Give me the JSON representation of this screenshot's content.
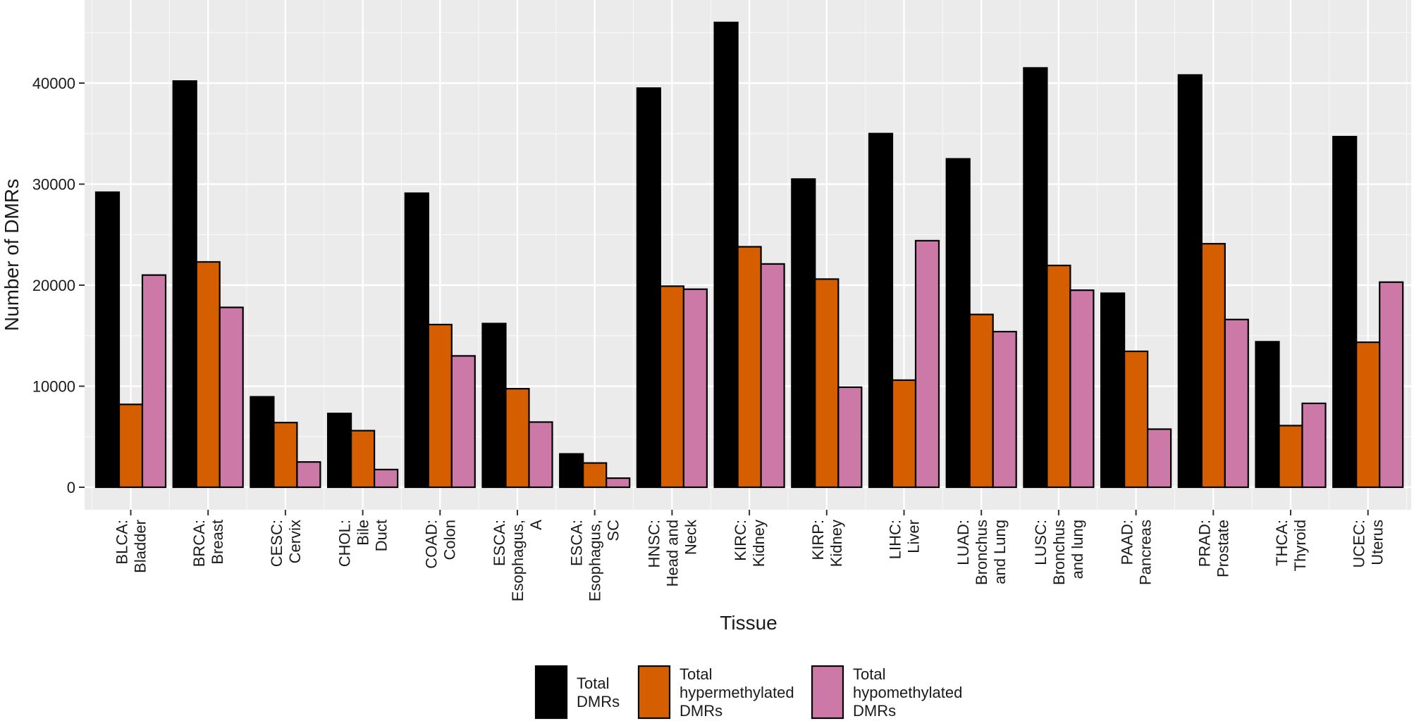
{
  "chart_data": {
    "type": "bar",
    "title": "",
    "xlabel": "Tissue",
    "ylabel": "Number of DMRs",
    "ylim": [
      0,
      48000
    ],
    "yticks": [
      0,
      10000,
      20000,
      30000,
      40000
    ],
    "grid": true,
    "legend_position": "bottom",
    "categories": [
      [
        "BLCA:",
        "Bladder"
      ],
      [
        "BRCA:",
        "Breast"
      ],
      [
        "CESC:",
        "Cervix"
      ],
      [
        "CHOL:",
        "Bile",
        "Duct"
      ],
      [
        "COAD:",
        "Colon"
      ],
      [
        "ESCA:",
        "Esophagus,",
        "A"
      ],
      [
        "ESCA:",
        "Esophagus,",
        "SC"
      ],
      [
        "HNSC:",
        "Head and",
        "Neck"
      ],
      [
        "KIRC:",
        "Kidney"
      ],
      [
        "KIRP:",
        "Kidney"
      ],
      [
        "LIHC:",
        "Liver"
      ],
      [
        "LUAD:",
        "Bronchus",
        "and Lung"
      ],
      [
        "LUSC:",
        "Bronchus",
        "and lung"
      ],
      [
        "PAAD:",
        "Pancreas"
      ],
      [
        "PRAD:",
        "Prostate"
      ],
      [
        "THCA:",
        "Thyroid"
      ],
      [
        "UCEC:",
        "Uterus"
      ]
    ],
    "series": [
      {
        "name": [
          "Total",
          "DMRs"
        ],
        "color": "#000000",
        "values": [
          29200,
          40200,
          8950,
          7300,
          29100,
          16200,
          3300,
          39500,
          46000,
          30500,
          35000,
          32500,
          41500,
          19200,
          40800,
          14400,
          34700
        ]
      },
      {
        "name": [
          "Total",
          "hypermethylated",
          "DMRs"
        ],
        "color": "#D55E00",
        "values": [
          8200,
          22300,
          6400,
          5600,
          16100,
          9750,
          2400,
          19900,
          23800,
          20600,
          10600,
          17100,
          21950,
          13450,
          24100,
          6100,
          14350
        ]
      },
      {
        "name": [
          "Total",
          "hypomethylated",
          "DMRs"
        ],
        "color": "#CC79A7",
        "values": [
          21000,
          17800,
          2500,
          1750,
          13000,
          6450,
          900,
          19600,
          22100,
          9900,
          24400,
          15400,
          19500,
          5750,
          16600,
          8300,
          20300
        ]
      }
    ]
  }
}
